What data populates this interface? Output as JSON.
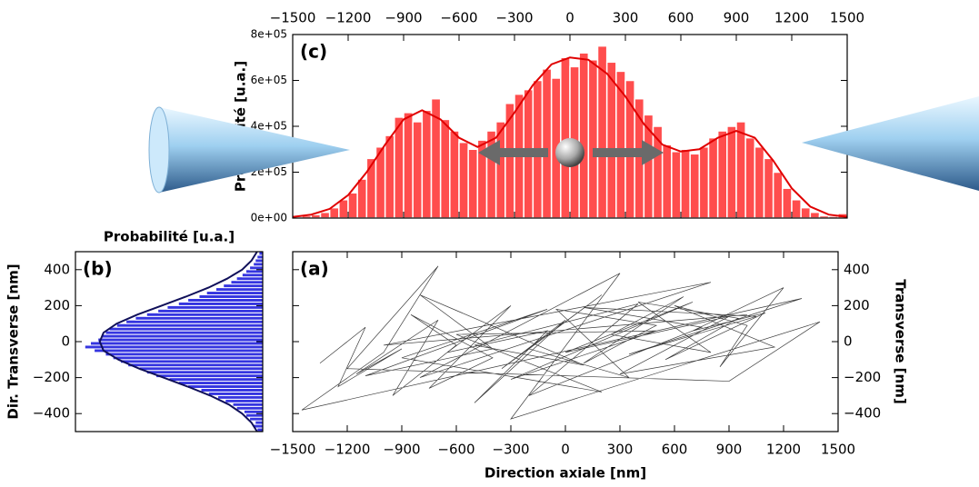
{
  "chart_data": [
    {
      "type": "histogram",
      "orientation": "vertical",
      "label": "(c)",
      "ylabel": "Probabilité [u.a.]",
      "xaxis_position": "top",
      "yaxis_position": "left",
      "color": "#ff4d4d",
      "edge_color": "#ffffff",
      "bins": [
        -1500,
        -1450,
        -1400,
        -1350,
        -1300,
        -1250,
        -1200,
        -1150,
        -1100,
        -1050,
        -1000,
        -950,
        -900,
        -850,
        -800,
        -750,
        -700,
        -650,
        -600,
        -550,
        -500,
        -450,
        -400,
        -350,
        -300,
        -250,
        -200,
        -150,
        -100,
        -50,
        0,
        50,
        100,
        150,
        200,
        250,
        300,
        350,
        400,
        450,
        500,
        550,
        600,
        650,
        700,
        750,
        800,
        850,
        900,
        950,
        1000,
        1050,
        1100,
        1150,
        1200,
        1250,
        1300,
        1350,
        1400,
        1450,
        1500
      ],
      "values": [
        5000,
        10000,
        15000,
        25000,
        45000,
        80000,
        110000,
        170000,
        260000,
        310000,
        360000,
        440000,
        460000,
        420000,
        470000,
        520000,
        430000,
        380000,
        330000,
        300000,
        340000,
        380000,
        420000,
        500000,
        540000,
        560000,
        600000,
        650000,
        610000,
        700000,
        660000,
        720000,
        690000,
        750000,
        680000,
        640000,
        600000,
        520000,
        450000,
        400000,
        320000,
        290000,
        300000,
        280000,
        310000,
        350000,
        380000,
        400000,
        420000,
        350000,
        310000,
        260000,
        200000,
        130000,
        80000,
        45000,
        25000,
        10000,
        8000,
        20000
      ],
      "curve": {
        "color": "#e00000",
        "x": [
          -1500,
          -1400,
          -1300,
          -1200,
          -1100,
          -1000,
          -900,
          -800,
          -700,
          -600,
          -500,
          -400,
          -300,
          -200,
          -100,
          0,
          100,
          200,
          300,
          400,
          500,
          600,
          700,
          800,
          900,
          1000,
          1100,
          1200,
          1300,
          1400,
          1500
        ],
        "values": [
          5000,
          15000,
          40000,
          100000,
          200000,
          320000,
          430000,
          470000,
          430000,
          350000,
          310000,
          350000,
          460000,
          580000,
          670000,
          700000,
          690000,
          630000,
          530000,
          410000,
          320000,
          290000,
          300000,
          350000,
          380000,
          350000,
          250000,
          130000,
          50000,
          15000,
          5000
        ]
      },
      "xlim": [
        -1500,
        1500
      ],
      "ylim": [
        0,
        800000
      ],
      "xticks": [
        {
          "value": -1500,
          "label": "−1500"
        },
        {
          "value": -1200,
          "label": "−1200"
        },
        {
          "value": -900,
          "label": "−900"
        },
        {
          "value": -600,
          "label": "−600"
        },
        {
          "value": -300,
          "label": "−300"
        },
        0,
        300,
        600,
        900,
        1200,
        1500
      ],
      "yticks": [
        {
          "value": 0,
          "label": "0e+00"
        },
        {
          "value": 200000,
          "label": "2e+05"
        },
        {
          "value": 400000,
          "label": "4e+05"
        },
        {
          "value": 600000,
          "label": "6e+05"
        },
        {
          "value": 800000,
          "label": "8e+05"
        }
      ]
    },
    {
      "type": "histogram",
      "orientation": "horizontal",
      "label": "(b)",
      "xlabel": "Probabilité [u.a.]",
      "ylabel": "Dir. Transverse [nm]",
      "xaxis_position": "top",
      "yaxis_position": "left",
      "color": "#3535e0",
      "edge_color": "#ffffff",
      "bins": [
        -500,
        -480,
        -460,
        -440,
        -420,
        -400,
        -380,
        -360,
        -340,
        -320,
        -300,
        -280,
        -260,
        -240,
        -220,
        -200,
        -180,
        -160,
        -140,
        -120,
        -100,
        -80,
        -60,
        -40,
        -20,
        0,
        20,
        40,
        60,
        80,
        100,
        120,
        140,
        160,
        180,
        200,
        220,
        240,
        260,
        280,
        300,
        320,
        340,
        360,
        380,
        400,
        420,
        440,
        460,
        480,
        500
      ],
      "values": [
        0.03,
        0.05,
        0.04,
        0.07,
        0.09,
        0.1,
        0.14,
        0.16,
        0.2,
        0.24,
        0.29,
        0.33,
        0.4,
        0.45,
        0.5,
        0.57,
        0.62,
        0.66,
        0.72,
        0.76,
        0.8,
        0.84,
        0.9,
        0.95,
        0.92,
        0.88,
        0.86,
        0.84,
        0.82,
        0.78,
        0.73,
        0.68,
        0.62,
        0.56,
        0.51,
        0.45,
        0.4,
        0.34,
        0.3,
        0.25,
        0.21,
        0.17,
        0.14,
        0.11,
        0.09,
        0.07,
        0.05,
        0.04,
        0.03,
        0.02
      ],
      "curve": {
        "color": "#10105a",
        "y": [
          -500,
          -450,
          -400,
          -350,
          -300,
          -250,
          -200,
          -150,
          -100,
          -50,
          0,
          50,
          100,
          150,
          200,
          250,
          300,
          350,
          400,
          450,
          500
        ],
        "values": [
          0.03,
          0.06,
          0.11,
          0.18,
          0.28,
          0.4,
          0.53,
          0.66,
          0.77,
          0.85,
          0.87,
          0.85,
          0.78,
          0.67,
          0.54,
          0.41,
          0.29,
          0.19,
          0.11,
          0.06,
          0.03
        ]
      },
      "xlim": [
        1,
        0
      ],
      "ylim": [
        -500,
        500
      ],
      "yticks": [
        {
          "value": -400,
          "label": "−400"
        },
        {
          "value": -200,
          "label": "−200"
        },
        0,
        200,
        400
      ]
    },
    {
      "type": "line",
      "label": "(a)",
      "xlabel": "Direction axiale [nm]",
      "ylabel": "Transverse [nm]",
      "xaxis_position": "bottom",
      "yaxis_position": "right",
      "color": "#1a1a1a",
      "x": [
        -1350,
        -1100,
        -1250,
        -900,
        -1150,
        -700,
        -950,
        -600,
        -850,
        -400,
        -750,
        -300,
        -650,
        -100,
        -500,
        0,
        -350,
        200,
        -200,
        350,
        -50,
        500,
        100,
        650,
        250,
        800,
        400,
        950,
        550,
        1100,
        700,
        1200,
        850,
        1000,
        600,
        1150,
        300,
        900,
        0,
        700,
        -300,
        500,
        -600,
        200,
        -900,
        -100,
        -1100,
        -400,
        -800,
        100,
        -500,
        400,
        -200,
        750,
        100,
        1050,
        350,
        1300,
        -1450,
        -1000,
        -700,
        -1200,
        900,
        1400,
        -300,
        300,
        -800,
        800,
        -1000,
        1000
      ],
      "values": [
        -120,
        80,
        -250,
        -40,
        -180,
        120,
        -300,
        -20,
        150,
        -90,
        -260,
        200,
        -60,
        60,
        -340,
        120,
        -150,
        260,
        -40,
        -200,
        180,
        90,
        -120,
        250,
        40,
        -60,
        220,
        130,
        -100,
        160,
        60,
        300,
        -140,
        90,
        200,
        -30,
        -180,
        140,
        -60,
        220,
        -210,
        60,
        40,
        -280,
        -90,
        180,
        -190,
        -40,
        260,
        -130,
        -20,
        210,
        -300,
        80,
        190,
        140,
        -70,
        240,
        -380,
        -60,
        420,
        -150,
        -220,
        110,
        -430,
        380,
        -200,
        330,
        -20,
        150
      ],
      "xlim": [
        -1500,
        1500
      ],
      "ylim": [
        -500,
        500
      ],
      "xticks": [
        {
          "value": -1500,
          "label": "−1500"
        },
        {
          "value": -1200,
          "label": "−1200"
        },
        {
          "value": -900,
          "label": "−900"
        },
        {
          "value": -600,
          "label": "−600"
        },
        {
          "value": -300,
          "label": "−300"
        },
        0,
        300,
        600,
        900,
        1200,
        1500
      ],
      "yticks": [
        {
          "value": -400,
          "label": "−400"
        },
        {
          "value": -200,
          "label": "−200"
        },
        0,
        200,
        400
      ]
    }
  ]
}
